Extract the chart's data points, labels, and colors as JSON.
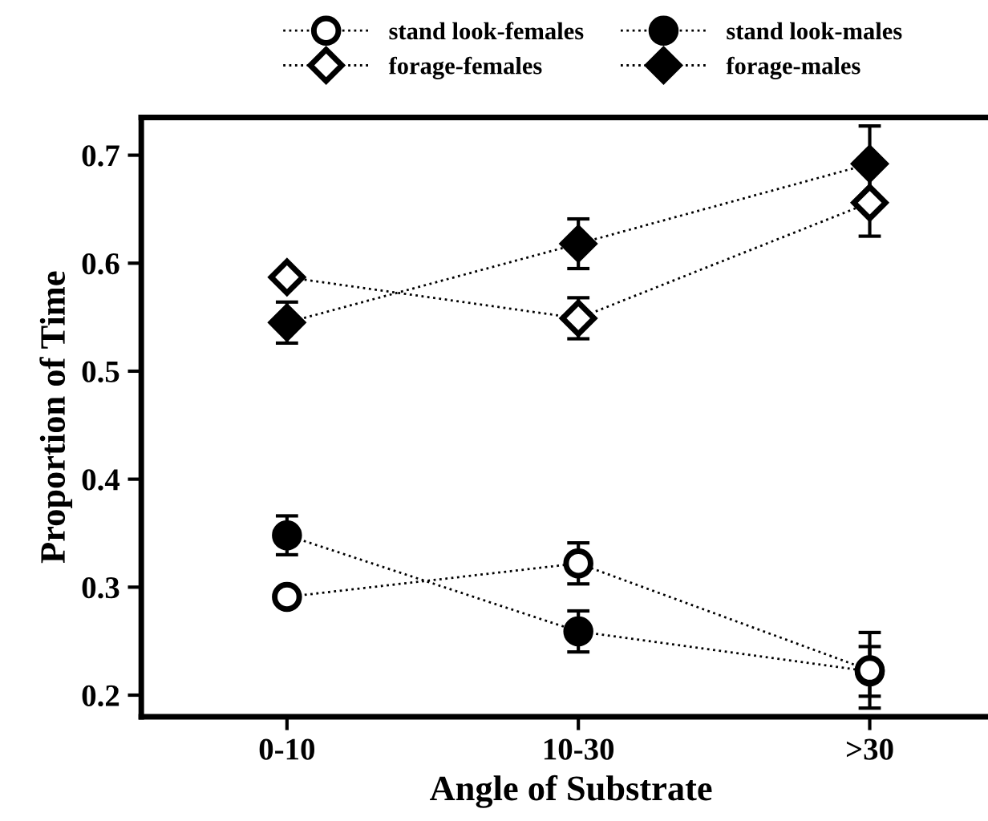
{
  "chart_data": {
    "type": "line",
    "xlabel": "Angle of Substrate",
    "ylabel": "Proportion of Time",
    "categories": [
      "0-10",
      "10-30",
      ">30"
    ],
    "series": [
      {
        "name": "stand look-females",
        "color": "#ffffff",
        "marker": "circle",
        "values": [
          0.291,
          0.322,
          0.223
        ],
        "errors": [
          null,
          0.019,
          0.035
        ]
      },
      {
        "name": "stand look-males",
        "color": "#000000",
        "marker": "circle",
        "values": [
          0.348,
          0.259,
          0.222
        ],
        "errors": [
          0.018,
          0.019,
          0.023
        ]
      },
      {
        "name": "forage-females",
        "color": "#ffffff",
        "marker": "diamond",
        "values": [
          0.587,
          0.549,
          0.656
        ],
        "errors": [
          null,
          0.019,
          0.031
        ]
      },
      {
        "name": "forage-males",
        "color": "#000000",
        "marker": "diamond",
        "values": [
          0.545,
          0.618,
          0.692
        ],
        "errors": [
          0.019,
          0.023,
          0.035
        ]
      }
    ],
    "ylim": [
      0.18,
      0.735
    ],
    "yticks": [
      0.2,
      0.3,
      0.4,
      0.5,
      0.6,
      0.7
    ],
    "line_style": "dotted",
    "grid": false,
    "legend": "top"
  }
}
